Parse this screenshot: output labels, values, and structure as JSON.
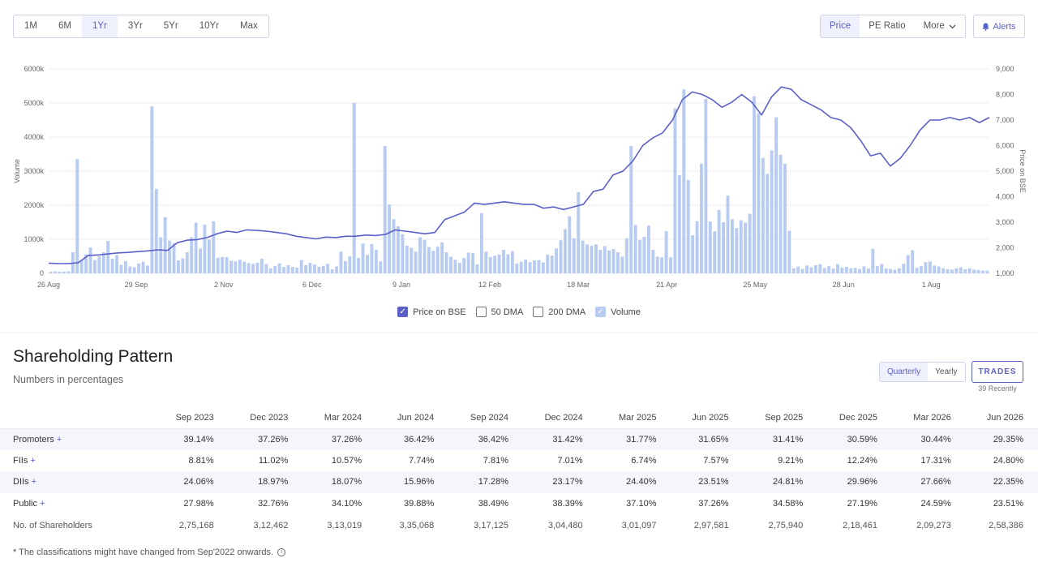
{
  "range_tabs": [
    {
      "label": "1M",
      "active": false
    },
    {
      "label": "6M",
      "active": false
    },
    {
      "label": "1Yr",
      "active": true
    },
    {
      "label": "3Yr",
      "active": false
    },
    {
      "label": "5Yr",
      "active": false
    },
    {
      "label": "10Yr",
      "active": false
    },
    {
      "label": "Max",
      "active": false
    }
  ],
  "view_tabs": {
    "price": "Price",
    "pe_ratio": "PE Ratio",
    "more": "More"
  },
  "alerts_label": "Alerts",
  "colors": {
    "accent": "#5a60c8",
    "volume": "#b8cbf1",
    "price_line": "#5a60c8"
  },
  "legend": {
    "price_on_bse": "Price on BSE",
    "dma50": "50 DMA",
    "dma200": "200 DMA",
    "volume": "Volume"
  },
  "chart_data": {
    "type": "line",
    "xlabel": "",
    "ylabel_left": "Volume",
    "ylabel_right": "Price on BSE",
    "y_left_ticks": [
      "0",
      "1000k",
      "2000k",
      "3000k",
      "4000k",
      "5000k",
      "6000k"
    ],
    "y_left_range": [
      0,
      6000
    ],
    "y_right_ticks": [
      "1,000",
      "2,000",
      "3,000",
      "4,000",
      "5,000",
      "6,000",
      "7,000",
      "8,000",
      "9,000"
    ],
    "y_right_range": [
      1000,
      9000
    ],
    "x_ticks": [
      "26 Aug",
      "29 Sep",
      "2 Nov",
      "6 Dec",
      "9 Jan",
      "12 Feb",
      "18 Mar",
      "21 Apr",
      "25 May",
      "28 Jun",
      "1 Aug"
    ],
    "grid": true,
    "series": [
      {
        "name": "Price on BSE",
        "type": "line",
        "values": [
          1400,
          1380,
          1380,
          1420,
          1700,
          1720,
          1760,
          1800,
          1820,
          1850,
          1880,
          1920,
          1900,
          2200,
          2300,
          2320,
          2400,
          2550,
          2650,
          2600,
          2700,
          2680,
          2650,
          2600,
          2550,
          2450,
          2400,
          2350,
          2420,
          2400,
          2450,
          2450,
          2500,
          2480,
          2520,
          2700,
          2650,
          2600,
          2550,
          2600,
          3100,
          3250,
          3400,
          3750,
          3700,
          3750,
          3800,
          3750,
          3700,
          3700,
          3550,
          3600,
          3500,
          3600,
          3700,
          4200,
          4300,
          4850,
          5000,
          5400,
          6000,
          6300,
          6500,
          7000,
          7800,
          8100,
          8000,
          7800,
          7500,
          7700,
          8000,
          7700,
          7200,
          7900,
          8300,
          8200,
          7800,
          7600,
          7400,
          7100,
          7000,
          6700,
          6200,
          5600,
          5700,
          5200,
          5500,
          6000,
          6600,
          7000,
          7000,
          7100,
          7000,
          7100,
          6900,
          7100
        ]
      },
      {
        "name": "Volume",
        "type": "bar",
        "values": [
          50,
          60,
          55,
          50,
          60,
          620,
          3350,
          380,
          560,
          760,
          390,
          500,
          620,
          950,
          430,
          540,
          250,
          360,
          200,
          180,
          290,
          340,
          230,
          4900,
          2480,
          1060,
          1650,
          960,
          890,
          380,
          440,
          620,
          1060,
          1490,
          730,
          1430,
          990,
          1530,
          460,
          480,
          480,
          370,
          350,
          400,
          340,
          300,
          280,
          310,
          430,
          270,
          150,
          220,
          290,
          190,
          240,
          190,
          170,
          390,
          240,
          310,
          260,
          190,
          220,
          280,
          120,
          200,
          640,
          360,
          500,
          5000,
          460,
          870,
          540,
          860,
          690,
          350,
          3740,
          2020,
          1590,
          1380,
          1150,
          810,
          750,
          640,
          1060,
          980,
          770,
          660,
          780,
          910,
          620,
          490,
          400,
          310,
          450,
          610,
          590,
          260,
          1770,
          640,
          480,
          520,
          550,
          690,
          560,
          650,
          290,
          340,
          410,
          330,
          380,
          390,
          320,
          550,
          520,
          730,
          970,
          1300,
          1680,
          1030,
          2380,
          960,
          850,
          810,
          850,
          690,
          800,
          670,
          710,
          620,
          490,
          1030,
          3740,
          1420,
          980,
          1070,
          1400,
          690,
          490,
          470,
          1240,
          470,
          4840,
          2880,
          5400,
          2740,
          1120,
          1530,
          3220,
          5120,
          1520,
          1230,
          1860,
          1500,
          2280,
          1590,
          1330,
          1560,
          1490,
          1750,
          5200,
          4700,
          3390,
          2920,
          3610,
          4580,
          3480,
          3220,
          1250,
          150,
          200,
          130,
          230,
          180,
          240,
          270,
          160,
          210,
          140,
          270,
          170,
          190,
          150,
          160,
          130,
          200,
          140,
          720,
          210,
          270,
          140,
          130,
          110,
          150,
          280,
          540,
          680,
          160,
          210,
          330,
          350,
          230,
          200,
          150,
          120,
          110,
          150,
          180,
          120,
          150,
          110,
          100,
          80,
          80
        ]
      }
    ]
  },
  "shareholding": {
    "title": "Shareholding Pattern",
    "subtitle": "Numbers in percentages",
    "toggle": {
      "quarterly": "Quarterly",
      "yearly": "Yearly"
    },
    "trades_label": "TRADES",
    "trades_note": "39 Recently",
    "columns": [
      "Sep 2023",
      "Dec 2023",
      "Mar 2024",
      "Jun 2024",
      "Sep 2024",
      "Dec 2024",
      "Mar 2025",
      "Jun 2025",
      "Sep 2025",
      "Dec 2025",
      "Mar 2026",
      "Jun 2026"
    ],
    "rows": [
      {
        "label": "Promoters",
        "plus": "+",
        "values": [
          "39.14%",
          "37.26%",
          "37.26%",
          "36.42%",
          "36.42%",
          "31.42%",
          "31.77%",
          "31.65%",
          "31.41%",
          "30.59%",
          "30.44%",
          "29.35%"
        ]
      },
      {
        "label": "FIIs",
        "plus": "+",
        "values": [
          "8.81%",
          "11.02%",
          "10.57%",
          "7.74%",
          "7.81%",
          "7.01%",
          "6.74%",
          "7.57%",
          "9.21%",
          "12.24%",
          "17.31%",
          "24.80%"
        ]
      },
      {
        "label": "DIIs",
        "plus": "+",
        "values": [
          "24.06%",
          "18.97%",
          "18.07%",
          "15.96%",
          "17.28%",
          "23.17%",
          "24.40%",
          "23.51%",
          "24.81%",
          "29.96%",
          "27.66%",
          "22.35%"
        ]
      },
      {
        "label": "Public",
        "plus": "+",
        "values": [
          "27.98%",
          "32.76%",
          "34.10%",
          "39.88%",
          "38.49%",
          "38.39%",
          "37.10%",
          "37.26%",
          "34.58%",
          "27.19%",
          "24.59%",
          "23.51%"
        ]
      }
    ],
    "shareholders": {
      "label": "No. of Shareholders",
      "values": [
        "2,75,168",
        "3,12,462",
        "3,13,019",
        "3,35,068",
        "3,17,125",
        "3,04,480",
        "3,01,097",
        "2,97,581",
        "2,75,940",
        "2,18,461",
        "2,09,273",
        "2,58,386"
      ]
    },
    "footnote": "* The classifications might have changed from Sep'2022 onwards."
  }
}
